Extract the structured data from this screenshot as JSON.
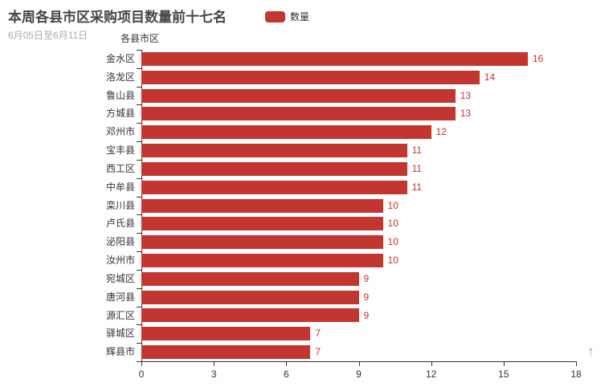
{
  "header": {
    "title": "本周各县市区采购项目数量前十七名",
    "subtitle": "6月05日至6月11日"
  },
  "legend": {
    "label": "数量",
    "color": "#c23531"
  },
  "icons": {
    "axis_arrow": "↑"
  },
  "colors": {
    "bar": "#c23531",
    "value_label": "#c23531",
    "title": "#464646",
    "subtitle": "#aaaaaa",
    "axis": "#333333",
    "arrow": "#999999",
    "background": "#ffffff"
  },
  "chart_data": {
    "type": "bar",
    "orientation": "horizontal",
    "title": "本周各县市区采购项目数量前十七名",
    "subtitle": "6月05日至6月11日",
    "legend": [
      "数量"
    ],
    "legend_position": "top",
    "ylabel": "各县市区",
    "xlabel": "",
    "categories": [
      "金水区",
      "洛龙区",
      "鲁山县",
      "方城县",
      "邓州市",
      "宝丰县",
      "西工区",
      "中牟县",
      "栾川县",
      "卢氏县",
      "泌阳县",
      "汝州市",
      "宛城区",
      "唐河县",
      "源汇区",
      "驿城区",
      "辉县市"
    ],
    "series": [
      {
        "name": "数量",
        "values": [
          16,
          14,
          13,
          13,
          12,
          11,
          11,
          11,
          10,
          10,
          10,
          10,
          9,
          9,
          9,
          7,
          7
        ]
      }
    ],
    "value_labels_shown": true,
    "xlim": [
      0,
      18
    ],
    "x_ticks": [
      0,
      3,
      6,
      9,
      12,
      15,
      18
    ],
    "grid": false
  }
}
